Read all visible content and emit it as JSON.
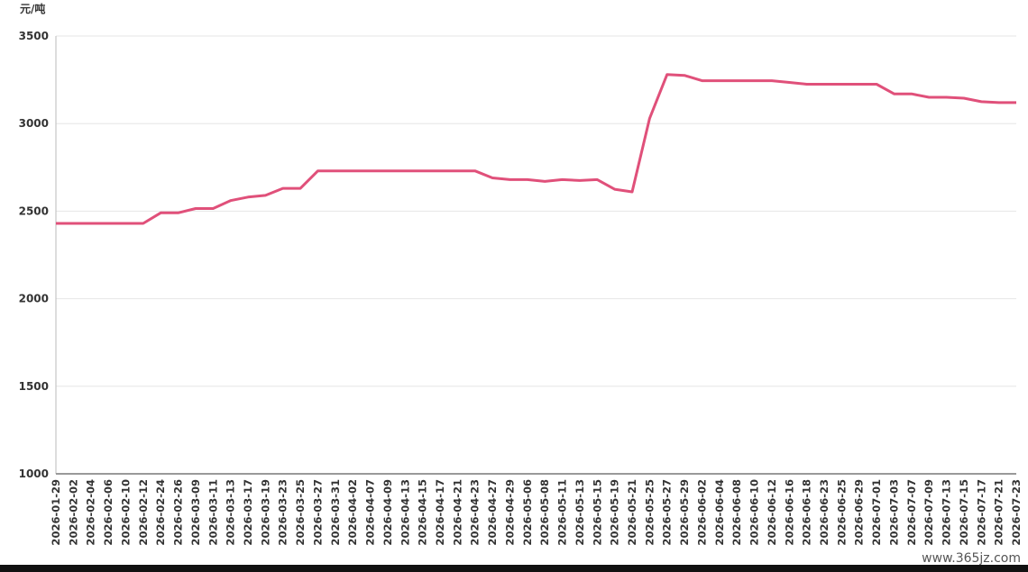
{
  "chart_data": {
    "type": "line",
    "y_axis_label": "元/吨",
    "categories": [
      "2026-01-29",
      "2026-02-02",
      "2026-02-04",
      "2026-02-06",
      "2026-02-10",
      "2026-02-12",
      "2026-02-24",
      "2026-02-26",
      "2026-03-09",
      "2026-03-11",
      "2026-03-13",
      "2026-03-17",
      "2026-03-19",
      "2026-03-23",
      "2026-03-25",
      "2026-03-27",
      "2026-03-31",
      "2026-04-02",
      "2026-04-07",
      "2026-04-09",
      "2026-04-13",
      "2026-04-15",
      "2026-04-17",
      "2026-04-21",
      "2026-04-23",
      "2026-04-27",
      "2026-04-29",
      "2026-05-06",
      "2026-05-08",
      "2026-05-11",
      "2026-05-13",
      "2026-05-15",
      "2026-05-19",
      "2026-05-21",
      "2026-05-25",
      "2026-05-27",
      "2026-05-29",
      "2026-06-02",
      "2026-06-04",
      "2026-06-08",
      "2026-06-10",
      "2026-06-12",
      "2026-06-16",
      "2026-06-18",
      "2026-06-23",
      "2026-06-25",
      "2026-06-29",
      "2026-07-01",
      "2026-07-03",
      "2026-07-07",
      "2026-07-09",
      "2026-07-13",
      "2026-07-15",
      "2026-07-17",
      "2026-07-21",
      "2026-07-23"
    ],
    "values": [
      2430,
      2430,
      2430,
      2430,
      2430,
      2430,
      2490,
      2490,
      2515,
      2515,
      2560,
      2580,
      2590,
      2630,
      2630,
      2730,
      2730,
      2730,
      2730,
      2730,
      2730,
      2730,
      2730,
      2730,
      2730,
      2690,
      2680,
      2680,
      2670,
      2680,
      2675,
      2680,
      2625,
      2610,
      3030,
      3280,
      3275,
      3245,
      3245,
      3245,
      3245,
      3245,
      3235,
      3225,
      3225,
      3225,
      3225,
      3225,
      3170,
      3170,
      3150,
      3150,
      3145,
      3125,
      3120,
      3120
    ],
    "color": "#e0507a",
    "ylim": [
      1000,
      3500
    ],
    "yticks": [
      1000,
      1500,
      2000,
      2500,
      3000,
      3500
    ],
    "grid": true,
    "watermark": "www.365jz.com"
  }
}
